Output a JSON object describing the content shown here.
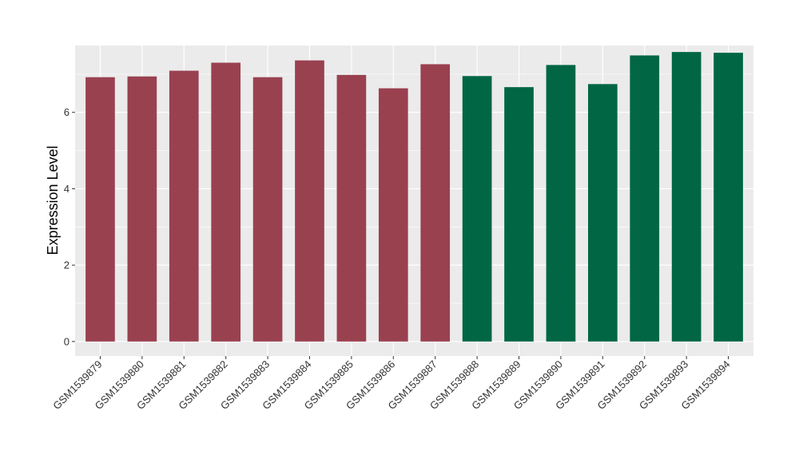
{
  "chart_data": {
    "type": "bar",
    "title": "",
    "xlabel": "",
    "ylabel": "Expression Level",
    "ylim": [
      -0.38,
      7.75
    ],
    "yticks": [
      0,
      2,
      4,
      6
    ],
    "grid": true,
    "legend": "none",
    "categories": [
      "GSM1539879",
      "GSM1539880",
      "GSM1539881",
      "GSM1539882",
      "GSM1539883",
      "GSM1539884",
      "GSM1539885",
      "GSM1539886",
      "GSM1539887",
      "GSM1539888",
      "GSM1539889",
      "GSM1539890",
      "GSM1539891",
      "GSM1539892",
      "GSM1539893",
      "GSM1539894"
    ],
    "values": [
      6.92,
      6.94,
      7.09,
      7.3,
      6.92,
      7.36,
      6.98,
      6.63,
      7.26,
      6.95,
      6.66,
      7.24,
      6.74,
      7.49,
      7.58,
      7.56
    ],
    "colors": [
      "#9a4150",
      "#9a4150",
      "#9a4150",
      "#9a4150",
      "#9a4150",
      "#9a4150",
      "#9a4150",
      "#9a4150",
      "#9a4150",
      "#006644",
      "#006644",
      "#006644",
      "#006644",
      "#006644",
      "#006644",
      "#006644"
    ],
    "panel_background": "#ebebeb",
    "gridline_color": "#ffffff"
  }
}
